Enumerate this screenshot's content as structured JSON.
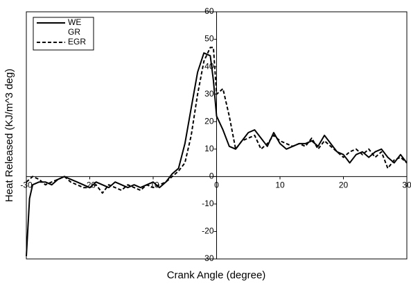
{
  "chart_data": {
    "type": "line",
    "xlabel": "Crank Angle (degree)",
    "ylabel": "Heat Released (KJ/m^3 deg)",
    "x": [
      -30,
      -29.5,
      -29,
      -28,
      -27,
      -26,
      -25,
      -24,
      -23,
      -22,
      -21,
      -20,
      -19,
      -18,
      -17,
      -16,
      -15,
      -14,
      -13,
      -12,
      -11,
      -10,
      -9,
      -8,
      -7,
      -6,
      -5,
      -4,
      -3,
      -2,
      -1,
      -0.5,
      0,
      1,
      2,
      3,
      4,
      5,
      6,
      7,
      8,
      9,
      10,
      11,
      12,
      13,
      14,
      15,
      16,
      17,
      18,
      19,
      20,
      21,
      22,
      23,
      24,
      25,
      26,
      27,
      28,
      29,
      30
    ],
    "series": [
      {
        "name": "WE",
        "color": "#000000",
        "dash": false,
        "values": [
          -29,
          -8,
          -3,
          -2,
          -2,
          -3,
          -1,
          0,
          -1,
          -2,
          -3,
          -4,
          -2,
          -3,
          -4,
          -2,
          -3,
          -4,
          -3,
          -4,
          -3,
          -2,
          -4,
          -2,
          1,
          3,
          12,
          25,
          38,
          45,
          44,
          35,
          22,
          17,
          11,
          10,
          13,
          16,
          17,
          14,
          11,
          16,
          12,
          10,
          11,
          12,
          12,
          13,
          11,
          15,
          12,
          9,
          8,
          5,
          8,
          9,
          7,
          9,
          10,
          7,
          5,
          8,
          5
        ]
      },
      {
        "name": "GR",
        "color": "#ffffff",
        "dash": false,
        "values": [
          null,
          null,
          null,
          null,
          null,
          null,
          null,
          null,
          null,
          null,
          null,
          null,
          null,
          null,
          null,
          null,
          null,
          null,
          null,
          null,
          null,
          null,
          null,
          null,
          null,
          null,
          null,
          null,
          null,
          null,
          null,
          null,
          null,
          null,
          null,
          null,
          null,
          null,
          null,
          null,
          null,
          null,
          null,
          null,
          null,
          null,
          null,
          null,
          null,
          null,
          null,
          null,
          null,
          null,
          null,
          null,
          null,
          null,
          null,
          null,
          null,
          null,
          null
        ]
      },
      {
        "name": "EGR",
        "color": "#000000",
        "dash": true,
        "values": [
          -2,
          -1,
          0,
          -1,
          -3,
          -2,
          -1,
          0,
          -2,
          -3,
          -4,
          -4,
          -3,
          -6,
          -3,
          -4,
          -5,
          -3,
          -4,
          -5,
          -3,
          -4,
          -3,
          -2,
          0,
          2,
          5,
          15,
          30,
          42,
          47,
          47,
          30,
          32,
          22,
          10,
          13,
          14,
          15,
          10,
          12,
          15,
          13,
          12,
          11,
          12,
          11,
          14,
          10,
          13,
          11,
          9,
          7,
          9,
          10,
          8,
          10,
          7,
          9,
          3,
          6,
          7,
          5
        ]
      }
    ],
    "xlim": [
      -30,
      30
    ],
    "xticks": [
      -30,
      -20,
      -10,
      0,
      10,
      20,
      30
    ],
    "ylim": [
      -30,
      60
    ],
    "yticks": [
      -30,
      -20,
      -10,
      0,
      10,
      20,
      30,
      40,
      50,
      60
    ],
    "grid": false,
    "legend": "upper left"
  }
}
